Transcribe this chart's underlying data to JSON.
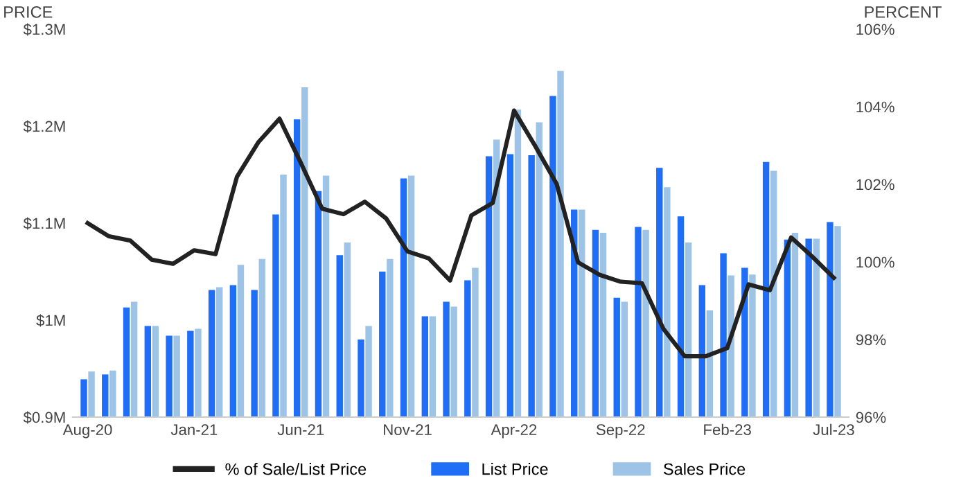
{
  "chart_data": {
    "type": "bar",
    "ylabel": "PRICE",
    "y2label": "PERCENT",
    "categories": [
      "Aug-20",
      null,
      null,
      null,
      null,
      "Jan-21",
      null,
      null,
      null,
      null,
      "Jun-21",
      null,
      null,
      null,
      null,
      "Nov-21",
      null,
      null,
      null,
      null,
      "Apr-22",
      null,
      null,
      null,
      null,
      "Sep-22",
      null,
      null,
      null,
      null,
      "Feb-23",
      null,
      null,
      null,
      null,
      "Jul-23"
    ],
    "series": [
      {
        "name": "% of Sale/List Price",
        "type": "line",
        "axis": "y2",
        "color": "#222222",
        "values": [
          101.0,
          100.66,
          100.55,
          100.06,
          99.95,
          100.3,
          100.2,
          102.19,
          103.08,
          103.69,
          102.55,
          101.37,
          101.23,
          101.55,
          101.12,
          100.27,
          100.09,
          99.52,
          101.2,
          101.52,
          103.9,
          102.98,
          102.01,
          99.99,
          99.67,
          99.49,
          99.45,
          98.28,
          97.57,
          97.57,
          97.78,
          99.42,
          99.27,
          100.63,
          100.13,
          99.59
        ]
      },
      {
        "name": "List Price",
        "color": "#1f6ef5",
        "values": [
          0.939,
          0.944,
          1.013,
          0.994,
          0.984,
          0.989,
          1.031,
          1.036,
          1.031,
          1.109,
          1.207,
          1.133,
          1.067,
          0.98,
          1.05,
          1.146,
          1.004,
          1.019,
          1.041,
          1.169,
          1.171,
          1.17,
          1.231,
          1.114,
          1.093,
          1.023,
          1.096,
          1.157,
          1.107,
          1.036,
          1.069,
          1.054,
          1.163,
          1.083,
          1.084,
          1.101
        ]
      },
      {
        "name": "Sales Price",
        "color": "#9dc3e6",
        "values": [
          0.947,
          0.948,
          1.019,
          0.994,
          0.984,
          0.991,
          1.034,
          1.057,
          1.063,
          1.15,
          1.24,
          1.149,
          1.08,
          0.994,
          1.063,
          1.149,
          1.004,
          1.014,
          1.054,
          1.186,
          1.217,
          1.204,
          1.257,
          1.114,
          1.09,
          1.019,
          1.093,
          1.137,
          1.08,
          1.01,
          1.046,
          1.047,
          1.154,
          1.09,
          1.084,
          1.097
        ]
      }
    ],
    "ylim": [
      0.9,
      1.3
    ],
    "yticks": [
      {
        "value": 0.9,
        "label": "$0.9M"
      },
      {
        "value": 1.0,
        "label": "$1M"
      },
      {
        "value": 1.1,
        "label": "$1.1M"
      },
      {
        "value": 1.2,
        "label": "$1.2M"
      },
      {
        "value": 1.3,
        "label": "$1.3M"
      }
    ],
    "y2lim": [
      96,
      106
    ],
    "y2ticks": [
      {
        "value": 96,
        "label": "96%"
      },
      {
        "value": 98,
        "label": "98%"
      },
      {
        "value": 100,
        "label": "100%"
      },
      {
        "value": 102,
        "label": "102%"
      },
      {
        "value": 104,
        "label": "104%"
      },
      {
        "value": 106,
        "label": "106%"
      }
    ],
    "legend": "bottom",
    "grid": false
  }
}
